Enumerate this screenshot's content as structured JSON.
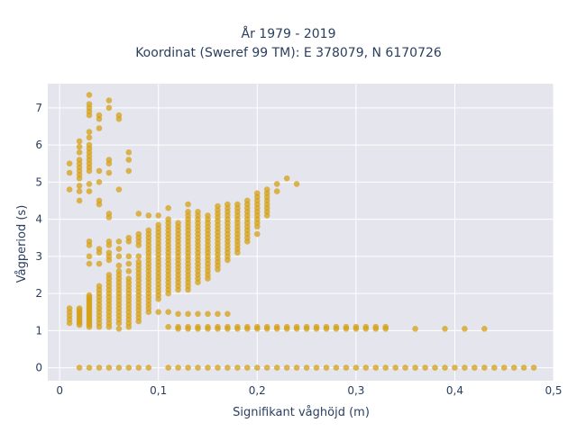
{
  "chart_data": {
    "type": "scatter",
    "title": "År 1979 - 2019",
    "subtitle": "Koordinat (Sweref 99 TM): E 378079, N 6170726",
    "xlabel": "Signifikant våghöjd (m)",
    "ylabel": "Vågperiod (s)",
    "xlim": [
      -0.012,
      0.5
    ],
    "ylim": [
      -0.35,
      7.65
    ],
    "x_ticks": [
      0,
      0.1,
      0.2,
      0.3,
      0.4,
      0.5
    ],
    "x_tick_labels": [
      "0",
      "0,1",
      "0,2",
      "0,3",
      "0,4",
      "0,5"
    ],
    "y_ticks": [
      0,
      1,
      2,
      3,
      4,
      5,
      6,
      7
    ],
    "y_tick_labels": [
      "0",
      "1",
      "2",
      "3",
      "4",
      "5",
      "6",
      "7"
    ],
    "grid": true,
    "colors": {
      "marker": "#d4a017",
      "plot_bg": "#e5e5ee",
      "grid": "#ffffff"
    },
    "columns": [
      {
        "x": 0.01,
        "y": [
          1.2,
          1.3,
          1.4,
          1.5,
          1.6,
          4.8,
          5.25,
          5.5
        ]
      },
      {
        "x": 0.02,
        "y": [
          0,
          1.15,
          1.2,
          1.25,
          1.3,
          1.35,
          1.4,
          1.45,
          1.5,
          1.55,
          1.6,
          4.5,
          4.75,
          4.9,
          5.1,
          5.2,
          5.3,
          5.4,
          5.5,
          5.6,
          5.8,
          5.95,
          6.1
        ]
      },
      {
        "x": 0.03,
        "y": [
          0,
          1.1,
          1.15,
          1.2,
          1.25,
          1.3,
          1.35,
          1.4,
          1.45,
          1.5,
          1.55,
          1.6,
          1.65,
          1.7,
          1.75,
          1.8,
          1.85,
          1.9,
          1.95,
          2.8,
          3.0,
          3.3,
          3.4,
          4.75,
          4.95,
          5.3,
          5.4,
          5.5,
          5.6,
          5.7,
          5.8,
          5.9,
          6.0,
          6.2,
          6.35,
          6.8,
          6.9,
          7.0,
          7.1,
          7.35
        ]
      },
      {
        "x": 0.04,
        "y": [
          0,
          1.1,
          1.2,
          1.3,
          1.4,
          1.5,
          1.6,
          1.7,
          1.8,
          1.9,
          2.0,
          2.1,
          2.2,
          2.8,
          3.1,
          3.2,
          4.4,
          4.5,
          5.0,
          5.3,
          6.45,
          6.7,
          6.8
        ]
      },
      {
        "x": 0.05,
        "y": [
          0,
          1.1,
          1.2,
          1.3,
          1.4,
          1.5,
          1.6,
          1.7,
          1.8,
          1.9,
          2.0,
          2.1,
          2.2,
          2.3,
          2.4,
          2.5,
          2.9,
          3.0,
          3.1,
          3.3,
          3.4,
          4.05,
          4.15,
          5.25,
          5.5,
          5.6,
          7.0,
          7.2
        ]
      },
      {
        "x": 0.06,
        "y": [
          0,
          1.05,
          1.2,
          1.3,
          1.4,
          1.5,
          1.6,
          1.7,
          1.8,
          1.9,
          2.0,
          2.1,
          2.2,
          2.3,
          2.4,
          2.5,
          2.6,
          2.75,
          3.0,
          3.2,
          3.4,
          4.8,
          6.7,
          6.8
        ]
      },
      {
        "x": 0.07,
        "y": [
          0,
          1.1,
          1.2,
          1.3,
          1.4,
          1.5,
          1.6,
          1.7,
          1.8,
          1.9,
          2.0,
          2.1,
          2.2,
          2.3,
          2.4,
          2.6,
          2.8,
          3.0,
          3.4,
          3.5,
          5.3,
          5.6,
          5.8
        ]
      },
      {
        "x": 0.08,
        "y": [
          0,
          1.25,
          1.35,
          1.45,
          1.55,
          1.65,
          1.75,
          1.85,
          1.95,
          2.05,
          2.15,
          2.25,
          2.35,
          2.45,
          2.55,
          2.65,
          2.75,
          2.85,
          3.0,
          3.3,
          3.4,
          3.5,
          3.6,
          4.15
        ]
      },
      {
        "x": 0.09,
        "y": [
          0,
          1.5,
          1.6,
          1.7,
          1.8,
          1.9,
          2.0,
          2.1,
          2.2,
          2.3,
          2.4,
          2.5,
          2.6,
          2.7,
          2.8,
          2.9,
          3.0,
          3.1,
          3.2,
          3.3,
          3.4,
          3.5,
          3.6,
          3.7,
          4.1
        ]
      },
      {
        "x": 0.1,
        "y": [
          1.5,
          1.85,
          1.95,
          2.05,
          2.15,
          2.25,
          2.35,
          2.45,
          2.55,
          2.65,
          2.75,
          2.85,
          2.95,
          3.05,
          3.15,
          3.25,
          3.35,
          3.45,
          3.55,
          3.65,
          3.75,
          3.85,
          4.1
        ]
      },
      {
        "x": 0.11,
        "y": [
          0,
          1.1,
          1.5,
          2.0,
          2.1,
          2.2,
          2.3,
          2.4,
          2.5,
          2.6,
          2.7,
          2.8,
          2.9,
          3.0,
          3.1,
          3.2,
          3.3,
          3.4,
          3.5,
          3.6,
          3.7,
          3.8,
          3.9,
          4.0,
          4.3
        ]
      },
      {
        "x": 0.12,
        "y": [
          0,
          1.05,
          1.1,
          1.45,
          2.1,
          2.2,
          2.3,
          2.4,
          2.5,
          2.6,
          2.7,
          2.8,
          2.9,
          3.0,
          3.1,
          3.2,
          3.3,
          3.4,
          3.5,
          3.6,
          3.7,
          3.8,
          3.9
        ]
      },
      {
        "x": 0.13,
        "y": [
          0,
          1.05,
          1.1,
          1.45,
          2.1,
          2.2,
          2.3,
          2.4,
          2.5,
          2.6,
          2.7,
          2.8,
          2.9,
          3.0,
          3.1,
          3.2,
          3.3,
          3.4,
          3.5,
          3.6,
          3.7,
          3.8,
          3.9,
          4.0,
          4.1,
          4.2,
          4.4
        ]
      },
      {
        "x": 0.14,
        "y": [
          0,
          1.05,
          1.1,
          1.45,
          2.3,
          2.4,
          2.5,
          2.6,
          2.7,
          2.8,
          2.9,
          3.0,
          3.1,
          3.2,
          3.3,
          3.4,
          3.5,
          3.6,
          3.7,
          3.8,
          3.9,
          4.0,
          4.1,
          4.2
        ]
      },
      {
        "x": 0.15,
        "y": [
          0,
          1.05,
          1.1,
          1.45,
          2.4,
          2.5,
          2.6,
          2.7,
          2.8,
          2.9,
          3.0,
          3.1,
          3.2,
          3.3,
          3.4,
          3.5,
          3.6,
          3.7,
          3.8,
          3.9,
          4.0,
          4.1
        ]
      },
      {
        "x": 0.16,
        "y": [
          0,
          1.05,
          1.1,
          1.45,
          2.65,
          2.75,
          2.85,
          2.95,
          3.05,
          3.15,
          3.25,
          3.35,
          3.45,
          3.55,
          3.65,
          3.75,
          3.85,
          3.95,
          4.05,
          4.15,
          4.25,
          4.35
        ]
      },
      {
        "x": 0.17,
        "y": [
          0,
          1.05,
          1.1,
          1.45,
          2.9,
          3.0,
          3.1,
          3.2,
          3.3,
          3.4,
          3.5,
          3.6,
          3.7,
          3.8,
          3.9,
          4.0,
          4.1,
          4.2,
          4.3,
          4.4
        ]
      },
      {
        "x": 0.18,
        "y": [
          0,
          1.05,
          1.1,
          3.1,
          3.2,
          3.3,
          3.4,
          3.5,
          3.6,
          3.7,
          3.8,
          3.9,
          4.0,
          4.1,
          4.2,
          4.3,
          4.4
        ]
      },
      {
        "x": 0.19,
        "y": [
          0,
          1.05,
          1.1,
          3.4,
          3.5,
          3.6,
          3.7,
          3.8,
          3.9,
          4.0,
          4.1,
          4.2,
          4.3,
          4.4,
          4.5
        ]
      },
      {
        "x": 0.2,
        "y": [
          0,
          1.05,
          1.1,
          3.6,
          3.8,
          3.9,
          4.0,
          4.1,
          4.2,
          4.3,
          4.4,
          4.5,
          4.6,
          4.7
        ]
      },
      {
        "x": 0.21,
        "y": [
          0,
          1.05,
          1.1,
          4.1,
          4.2,
          4.3,
          4.4,
          4.5,
          4.6,
          4.7,
          4.8
        ]
      },
      {
        "x": 0.22,
        "y": [
          0,
          1.05,
          1.1,
          4.75,
          4.95
        ]
      },
      {
        "x": 0.23,
        "y": [
          0,
          1.05,
          1.1,
          5.1
        ]
      },
      {
        "x": 0.24,
        "y": [
          0,
          1.05,
          1.1,
          4.95
        ]
      },
      {
        "x": 0.25,
        "y": [
          0,
          1.05,
          1.1
        ]
      },
      {
        "x": 0.26,
        "y": [
          0,
          1.05,
          1.1
        ]
      },
      {
        "x": 0.27,
        "y": [
          0,
          1.05,
          1.1
        ]
      },
      {
        "x": 0.28,
        "y": [
          0,
          1.05,
          1.1
        ]
      },
      {
        "x": 0.29,
        "y": [
          0,
          1.05,
          1.1
        ]
      },
      {
        "x": 0.3,
        "y": [
          0,
          1.05,
          1.1
        ]
      },
      {
        "x": 0.31,
        "y": [
          0,
          1.05,
          1.1
        ]
      },
      {
        "x": 0.32,
        "y": [
          0,
          1.05,
          1.1
        ]
      },
      {
        "x": 0.33,
        "y": [
          0,
          1.05,
          1.1
        ]
      },
      {
        "x": 0.34,
        "y": [
          0
        ]
      },
      {
        "x": 0.35,
        "y": [
          0
        ]
      },
      {
        "x": 0.36,
        "y": [
          0,
          1.05
        ]
      },
      {
        "x": 0.37,
        "y": [
          0
        ]
      },
      {
        "x": 0.38,
        "y": [
          0
        ]
      },
      {
        "x": 0.39,
        "y": [
          0,
          1.05
        ]
      },
      {
        "x": 0.4,
        "y": [
          0
        ]
      },
      {
        "x": 0.41,
        "y": [
          0,
          1.05
        ]
      },
      {
        "x": 0.42,
        "y": [
          0
        ]
      },
      {
        "x": 0.43,
        "y": [
          0,
          1.05
        ]
      },
      {
        "x": 0.44,
        "y": [
          0
        ]
      },
      {
        "x": 0.45,
        "y": [
          0
        ]
      },
      {
        "x": 0.46,
        "y": [
          0
        ]
      },
      {
        "x": 0.47,
        "y": [
          0
        ]
      },
      {
        "x": 0.48,
        "y": [
          0
        ]
      }
    ]
  }
}
